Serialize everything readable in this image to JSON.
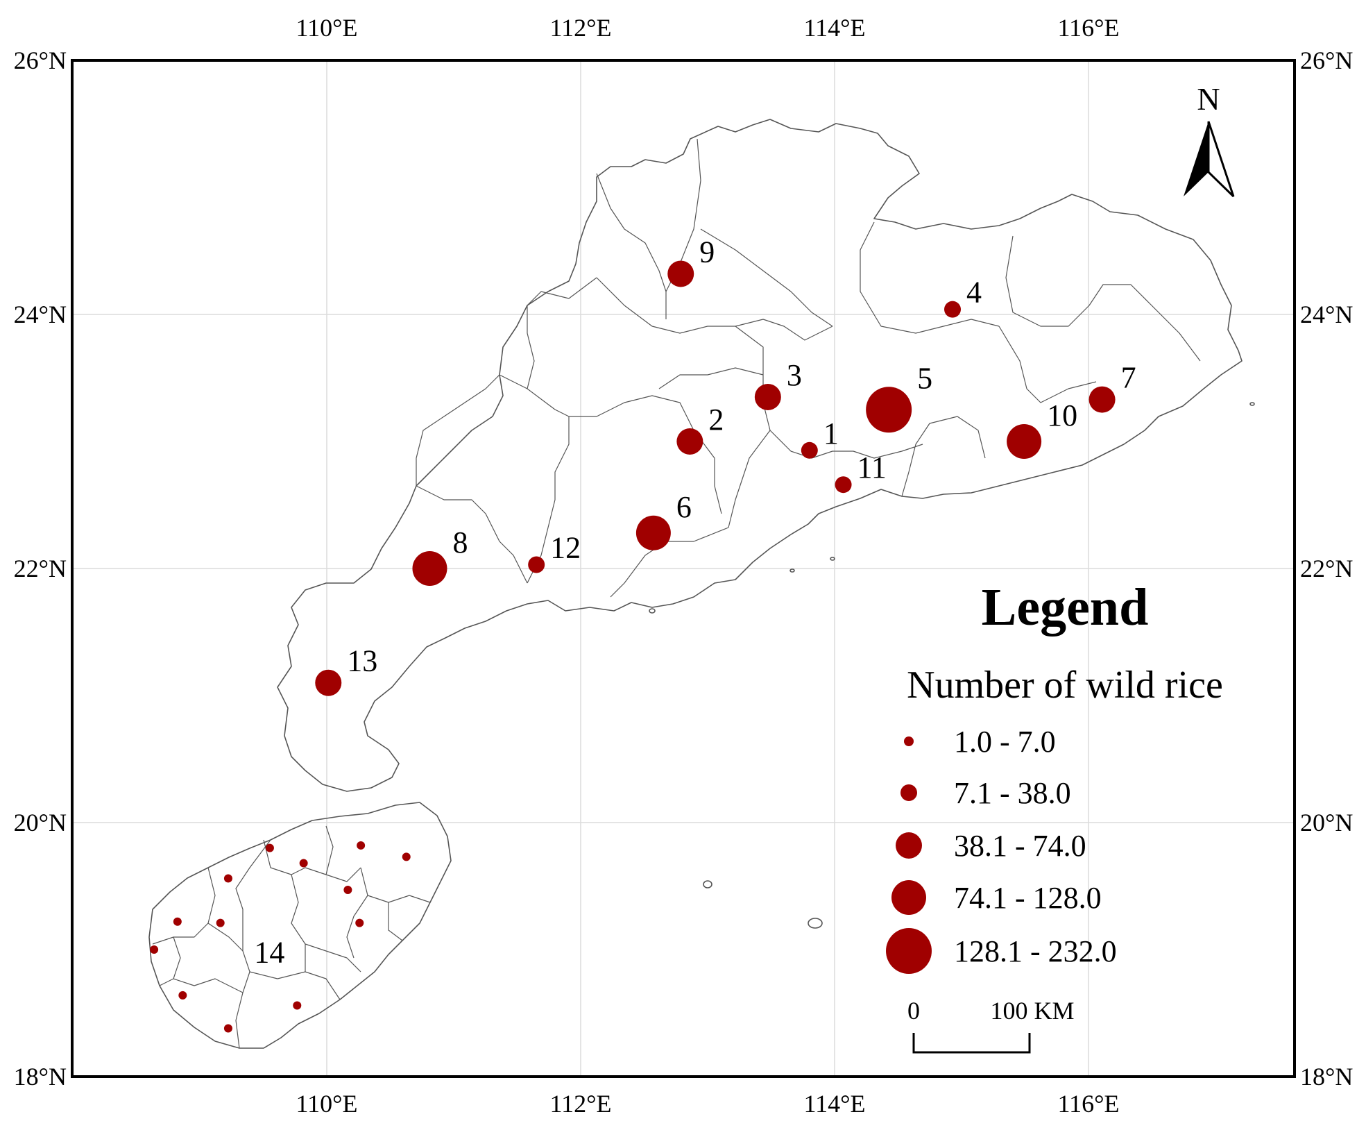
{
  "axes": {
    "top_ticks": [
      "110°E",
      "112°E",
      "114°E",
      "116°E"
    ],
    "bottom_ticks": [
      "110°E",
      "112°E",
      "114°E",
      "116°E"
    ],
    "left_ticks": [
      "26°N",
      "24°N",
      "22°N",
      "20°N",
      "18°N"
    ],
    "right_ticks": [
      "26°N",
      "24°N",
      "22°N",
      "20°N",
      "18°N"
    ],
    "lon_range": [
      108.2,
      117.6
    ],
    "lat_range": [
      18,
      26
    ],
    "gridlines": true
  },
  "north_arrow": {
    "label": "N",
    "icon": "north-arrow-icon"
  },
  "legend": {
    "title": "Legend",
    "subtitle": "Number of wild rice",
    "classes": [
      {
        "label": "1.0 - 7.0",
        "range": [
          1.0,
          7.0
        ]
      },
      {
        "label": "7.1 - 38.0",
        "range": [
          7.1,
          38.0
        ]
      },
      {
        "label": "38.1 - 74.0",
        "range": [
          38.1,
          74.0
        ]
      },
      {
        "label": "74.1 - 128.0",
        "range": [
          74.1,
          128.0
        ]
      },
      {
        "label": "128.1 - 232.0",
        "range": [
          128.1,
          232.0
        ]
      }
    ],
    "scale_bar": {
      "start_label": "0",
      "end_label": "100 KM",
      "length_km": 100
    }
  },
  "colors": {
    "marker": "#a00000",
    "boundary": "#555555",
    "grid": "#dcdcdc",
    "frame": "#000000"
  },
  "sites": [
    {
      "id": "1",
      "label": "1",
      "lon": 113.87,
      "lat": 22.93,
      "class": 2
    },
    {
      "id": "2",
      "label": "2",
      "lon": 112.95,
      "lat": 23.0,
      "class": 3
    },
    {
      "id": "3",
      "label": "3",
      "lon": 113.55,
      "lat": 23.35,
      "class": 3
    },
    {
      "id": "4",
      "label": "4",
      "lon": 114.97,
      "lat": 24.04,
      "class": 2
    },
    {
      "id": "5",
      "label": "5",
      "lon": 114.48,
      "lat": 23.25,
      "class": 5
    },
    {
      "id": "6",
      "label": "6",
      "lon": 112.67,
      "lat": 22.28,
      "class": 4
    },
    {
      "id": "7",
      "label": "7",
      "lon": 116.12,
      "lat": 23.33,
      "class": 3
    },
    {
      "id": "8",
      "label": "8",
      "lon": 110.95,
      "lat": 22.0,
      "class": 4
    },
    {
      "id": "9",
      "label": "9",
      "lon": 112.88,
      "lat": 24.32,
      "class": 3
    },
    {
      "id": "10",
      "label": "10",
      "lon": 115.52,
      "lat": 23.0,
      "class": 4
    },
    {
      "id": "11",
      "label": "11",
      "lon": 114.13,
      "lat": 22.66,
      "class": 2
    },
    {
      "id": "12",
      "label": "12",
      "lon": 111.77,
      "lat": 22.03,
      "class": 2
    },
    {
      "id": "13",
      "label": "13",
      "lon": 110.17,
      "lat": 21.1,
      "class": 3
    },
    {
      "id": "14",
      "label": "14",
      "lon": 109.6,
      "lat": 18.9,
      "class": 0,
      "label_only": true
    }
  ],
  "hainan_points": [
    {
      "lon": 109.72,
      "lat": 19.8
    },
    {
      "lon": 109.98,
      "lat": 19.68
    },
    {
      "lon": 110.42,
      "lat": 19.82
    },
    {
      "lon": 110.77,
      "lat": 19.73
    },
    {
      "lon": 109.4,
      "lat": 19.56
    },
    {
      "lon": 110.32,
      "lat": 19.47
    },
    {
      "lon": 109.01,
      "lat": 19.22
    },
    {
      "lon": 109.34,
      "lat": 19.21
    },
    {
      "lon": 110.41,
      "lat": 19.21
    },
    {
      "lon": 108.83,
      "lat": 19.0
    },
    {
      "lon": 109.05,
      "lat": 18.64
    },
    {
      "lon": 109.93,
      "lat": 18.56
    },
    {
      "lon": 109.4,
      "lat": 18.38
    }
  ]
}
